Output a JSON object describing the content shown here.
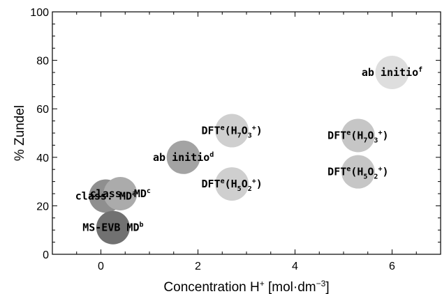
{
  "chart_data": {
    "type": "scatter",
    "title": "",
    "xlabel": "Concentration H",
    "xlabel_sup": "+",
    "xlabel_unit": " [mol·dm",
    "xlabel_unit_sup": "−3",
    "xlabel_close": "]",
    "ylabel": "% Zundel",
    "xlim": [
      -1,
      7
    ],
    "ylim": [
      0,
      100
    ],
    "xticks": [
      "0",
      "2",
      "4",
      "6"
    ],
    "yticks": [
      "0",
      "20",
      "40",
      "60",
      "80",
      "100"
    ],
    "grid": false,
    "points": [
      {
        "x": 0.1,
        "y": 24,
        "color": "#8f8f8f",
        "label": [
          {
            "t": "class. MD"
          },
          {
            "t": "a",
            "sup": true
          }
        ]
      },
      {
        "x": 0.4,
        "y": 25,
        "color": "#ababab",
        "label": [
          {
            "t": "class. MD"
          },
          {
            "t": "c",
            "sup": true
          }
        ]
      },
      {
        "x": 0.25,
        "y": 11,
        "color": "#717171",
        "label": [
          {
            "t": "MS-EVB MD"
          },
          {
            "t": "b",
            "sup": true
          }
        ]
      },
      {
        "x": 1.7,
        "y": 40,
        "color": "#a3a3a3",
        "label": [
          {
            "t": "ab initio"
          },
          {
            "t": "d",
            "sup": true
          }
        ]
      },
      {
        "x": 2.7,
        "y": 51,
        "color": "#cfcfcf",
        "label": [
          {
            "t": "DFT"
          },
          {
            "t": "e",
            "sup": true
          },
          {
            "t": "(H"
          },
          {
            "t": "7",
            "sub": true
          },
          {
            "t": "O"
          },
          {
            "t": "3",
            "sub": true
          },
          {
            "t": "+",
            "sup": true
          },
          {
            "t": ")"
          }
        ]
      },
      {
        "x": 2.7,
        "y": 29,
        "color": "#cfcfcf",
        "label": [
          {
            "t": "DFT"
          },
          {
            "t": "e",
            "sup": true
          },
          {
            "t": "(H"
          },
          {
            "t": "5",
            "sub": true
          },
          {
            "t": "O"
          },
          {
            "t": "2",
            "sub": true
          },
          {
            "t": "+",
            "sup": true
          },
          {
            "t": ")"
          }
        ]
      },
      {
        "x": 5.3,
        "y": 49,
        "color": "#c6c6c6",
        "label": [
          {
            "t": "DFT"
          },
          {
            "t": "e",
            "sup": true
          },
          {
            "t": "(H"
          },
          {
            "t": "7",
            "sub": true
          },
          {
            "t": "O"
          },
          {
            "t": "3",
            "sub": true
          },
          {
            "t": "+",
            "sup": true
          },
          {
            "t": ")"
          }
        ]
      },
      {
        "x": 5.3,
        "y": 34,
        "color": "#c6c6c6",
        "label": [
          {
            "t": "DFT"
          },
          {
            "t": "e",
            "sup": true
          },
          {
            "t": "(H"
          },
          {
            "t": "5",
            "sub": true
          },
          {
            "t": "O"
          },
          {
            "t": "2",
            "sub": true
          },
          {
            "t": "+",
            "sup": true
          },
          {
            "t": ")"
          }
        ]
      },
      {
        "x": 6.0,
        "y": 75,
        "color": "#dedede",
        "label": [
          {
            "t": "ab initio"
          },
          {
            "t": "f",
            "sup": true
          }
        ]
      }
    ]
  }
}
